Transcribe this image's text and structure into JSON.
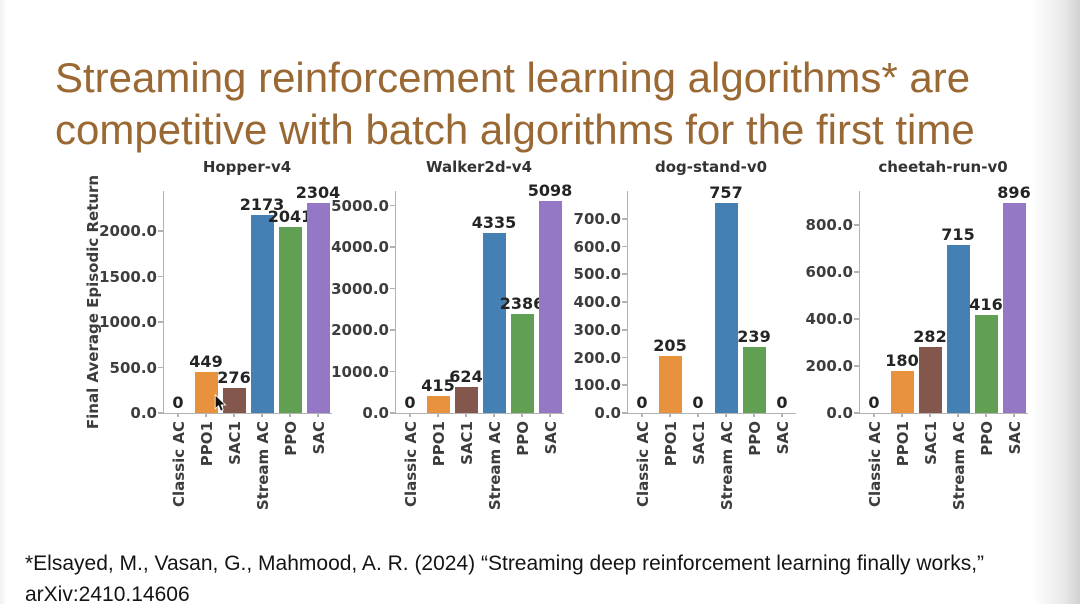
{
  "title": {
    "line1": "Streaming reinforcement learning algorithms* are",
    "line2": "competitive with batch algorithms for the first time"
  },
  "footer": {
    "line1": "*Elsayed, M., Vasan, G., Mahmood, A. R. (2024) “Streaming deep reinforcement learning finally works,”",
    "line2": "arXiv:2410.14606"
  },
  "colors": {
    "title_text": "#9A6833",
    "axis": "#B3B3B3",
    "tick_text": "#3D3D3D",
    "value_text": "#242424",
    "bars": {
      "Classic AC": "#BFBFBF",
      "PPO1": "#E8923E",
      "SAC1": "#84574D",
      "Stream AC": "#4480B4",
      "PPO": "#61A052",
      "SAC": "#9478C6"
    }
  },
  "chart_data": [
    {
      "type": "bar",
      "title": "Hopper-v4",
      "ylabel": "Final Average Episodic Return",
      "xlabel": "",
      "categories": [
        "Classic AC",
        "PPO1",
        "SAC1",
        "Stream AC",
        "PPO",
        "SAC"
      ],
      "values": [
        0,
        449,
        276,
        2173,
        2041,
        2304
      ],
      "value_labels": [
        "0",
        "449",
        "276",
        "2173",
        "2041",
        "2304"
      ],
      "yticks": [
        0,
        500,
        1000,
        1500,
        2000
      ],
      "ytick_labels": [
        "0.0",
        "500.0",
        "1000.0",
        "1500.0",
        "2000.0"
      ],
      "ymax": 2440,
      "grid": false,
      "legend": "none"
    },
    {
      "type": "bar",
      "title": "Walker2d-v4",
      "xlabel": "",
      "categories": [
        "Classic AC",
        "PPO1",
        "SAC1",
        "Stream AC",
        "PPO",
        "SAC"
      ],
      "values": [
        0,
        415,
        624,
        4335,
        2386,
        5098
      ],
      "value_labels": [
        "0",
        "415",
        "624",
        "4335",
        "2386",
        "5098"
      ],
      "yticks": [
        0,
        1000,
        2000,
        3000,
        4000,
        5000
      ],
      "ytick_labels": [
        "0.0",
        "1000.0",
        "2000.0",
        "3000.0",
        "4000.0",
        "5000.0"
      ],
      "ymax": 5350,
      "grid": false,
      "legend": "none"
    },
    {
      "type": "bar",
      "title": "dog-stand-v0",
      "xlabel": "",
      "categories": [
        "Classic AC",
        "PPO1",
        "SAC1",
        "Stream AC",
        "PPO",
        "SAC"
      ],
      "values": [
        0,
        205,
        0,
        757,
        239,
        0
      ],
      "value_labels": [
        "0",
        "205",
        "0",
        "757",
        "239",
        "0"
      ],
      "yticks": [
        0,
        100,
        200,
        300,
        400,
        500,
        600,
        700
      ],
      "ytick_labels": [
        "0.0",
        "100.0",
        "200.0",
        "300.0",
        "400.0",
        "500.0",
        "600.0",
        "700.0"
      ],
      "ymax": 800,
      "grid": false,
      "legend": "none"
    },
    {
      "type": "bar",
      "title": "cheetah-run-v0",
      "xlabel": "",
      "categories": [
        "Classic AC",
        "PPO1",
        "SAC1",
        "Stream AC",
        "PPO",
        "SAC"
      ],
      "values": [
        0,
        180,
        282,
        715,
        416,
        896
      ],
      "value_labels": [
        "0",
        "180",
        "282",
        "715",
        "416",
        "896"
      ],
      "yticks": [
        0,
        200,
        400,
        600,
        800
      ],
      "ytick_labels": [
        "0.0",
        "200.0",
        "400.0",
        "600.0",
        "800.0"
      ],
      "ymax": 945,
      "grid": false,
      "legend": "none"
    }
  ]
}
